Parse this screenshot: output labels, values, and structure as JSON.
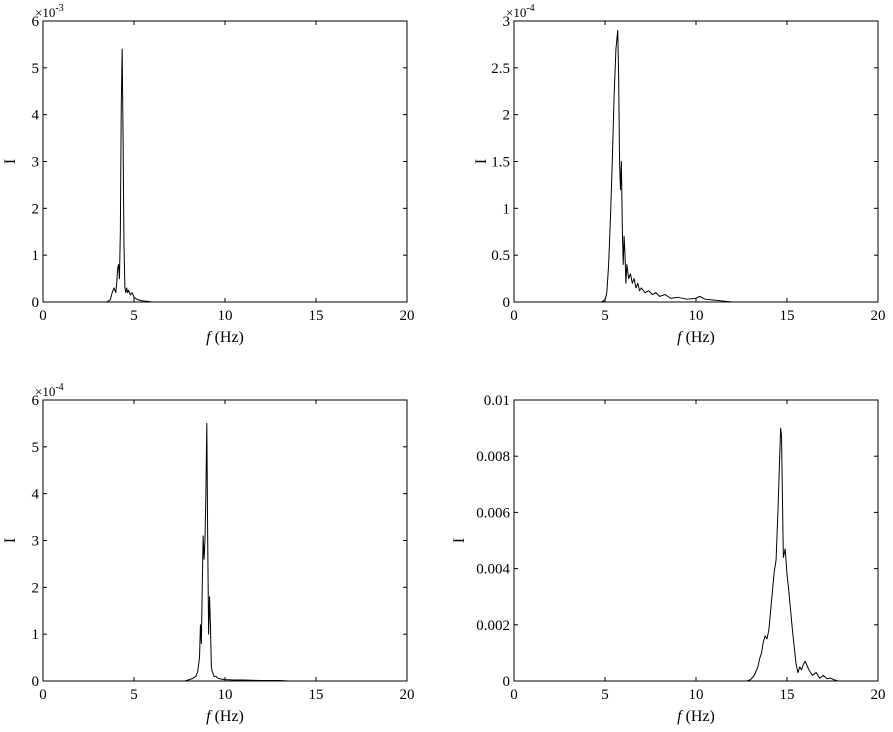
{
  "chart_data": [
    {
      "type": "line",
      "xlabel_italic": "f",
      "xlabel_rest": " (Hz)",
      "ylabel": "I",
      "xlim": [
        0,
        20
      ],
      "ylim": [
        0,
        0.006
      ],
      "tick_scale": 0.001,
      "exponent_base": "×10",
      "exponent_power": "-3",
      "xticks": [
        0,
        5,
        10,
        15,
        20
      ],
      "yticks": [
        0,
        0.001,
        0.002,
        0.003,
        0.004,
        0.005,
        0.006
      ],
      "ytick_labels": [
        "0",
        "1",
        "2",
        "3",
        "4",
        "5",
        "6"
      ],
      "grid": false,
      "series": [
        {
          "x": [
            3.5,
            3.7,
            3.8,
            3.9,
            4.0,
            4.05,
            4.1,
            4.15,
            4.2,
            4.25,
            4.3,
            4.35,
            4.4,
            4.45,
            4.5,
            4.55,
            4.6,
            4.65,
            4.7,
            4.8,
            4.9,
            5.0,
            5.2,
            5.4,
            5.6,
            5.8,
            6.0
          ],
          "y": [
            0,
            5e-05,
            0.0002,
            0.0003,
            0.0002,
            0.0004,
            0.0007,
            0.0008,
            0.0005,
            0.0015,
            0.0042,
            0.0054,
            0.0035,
            0.0012,
            0.0003,
            0.0002,
            0.0003,
            0.0002,
            0.00025,
            0.00015,
            0.0002,
            0.0001,
            5e-05,
            3e-05,
            2e-05,
            1e-05,
            0
          ]
        }
      ]
    },
    {
      "type": "line",
      "xlabel_italic": "f",
      "xlabel_rest": " (Hz)",
      "ylabel": "I",
      "xlim": [
        0,
        20
      ],
      "ylim": [
        0,
        0.0003
      ],
      "tick_scale": 0.0001,
      "exponent_base": "×10",
      "exponent_power": "-4",
      "xticks": [
        0,
        5,
        10,
        15,
        20
      ],
      "yticks": [
        0,
        5e-05,
        0.0001,
        0.00015,
        0.0002,
        0.00025,
        0.0003
      ],
      "ytick_labels": [
        "0",
        "0.5",
        "1",
        "1.5",
        "2",
        "2.5",
        "3"
      ],
      "grid": false,
      "series": [
        {
          "x": [
            4.8,
            5.0,
            5.1,
            5.2,
            5.3,
            5.4,
            5.5,
            5.6,
            5.7,
            5.75,
            5.8,
            5.85,
            5.9,
            5.95,
            6.0,
            6.05,
            6.1,
            6.15,
            6.2,
            6.3,
            6.4,
            6.5,
            6.6,
            6.7,
            6.8,
            6.9,
            7.0,
            7.2,
            7.4,
            7.6,
            7.8,
            8.0,
            8.3,
            8.6,
            9.0,
            9.5,
            10.0,
            10.2,
            10.5,
            11.0,
            11.5,
            12.0
          ],
          "y": [
            0,
            2e-06,
            1e-05,
            4e-05,
            9e-05,
            0.00015,
            0.00022,
            0.00027,
            0.00029,
            0.00024,
            0.00015,
            0.00012,
            0.00015,
            8e-05,
            4e-05,
            7e-05,
            5e-05,
            2e-05,
            4e-05,
            2.5e-05,
            3e-05,
            2e-05,
            2.5e-05,
            1.5e-05,
            2e-05,
            1.2e-05,
            1.5e-05,
            1e-05,
            1.2e-05,
            8e-06,
            1e-05,
            6e-06,
            8e-06,
            4e-06,
            5e-06,
            3e-06,
            4e-06,
            6e-06,
            3e-06,
            2e-06,
            1e-06,
            0
          ]
        }
      ]
    },
    {
      "type": "line",
      "xlabel_italic": "f",
      "xlabel_rest": " (Hz)",
      "ylabel": "I",
      "xlim": [
        0,
        20
      ],
      "ylim": [
        0,
        0.0006
      ],
      "tick_scale": 0.0001,
      "exponent_base": "×10",
      "exponent_power": "-4",
      "xticks": [
        0,
        5,
        10,
        15,
        20
      ],
      "yticks": [
        0,
        0.0001,
        0.0002,
        0.0003,
        0.0004,
        0.0005,
        0.0006
      ],
      "ytick_labels": [
        "0",
        "1",
        "2",
        "3",
        "4",
        "5",
        "6"
      ],
      "grid": false,
      "series": [
        {
          "x": [
            7.8,
            8.2,
            8.4,
            8.5,
            8.6,
            8.65,
            8.7,
            8.75,
            8.8,
            8.85,
            8.9,
            8.95,
            9.0,
            9.05,
            9.1,
            9.15,
            9.2,
            9.25,
            9.3,
            9.35,
            9.4,
            9.5,
            9.6,
            9.8,
            10.0,
            10.5,
            11.0,
            12.0,
            13.0,
            13.5
          ],
          "y": [
            0,
            5e-06,
            1e-05,
            2e-05,
            5e-05,
            0.00012,
            8e-05,
            0.0002,
            0.00031,
            0.00026,
            0.0003,
            0.0004,
            0.00055,
            0.0003,
            0.0001,
            0.00018,
            0.00012,
            3e-05,
            2e-05,
            1.5e-05,
            1e-05,
            1e-05,
            6e-06,
            4e-06,
            3e-06,
            2e-06,
            2e-06,
            1e-06,
            1e-06,
            0
          ]
        }
      ]
    },
    {
      "type": "line",
      "xlabel_italic": "f",
      "xlabel_rest": " (Hz)",
      "ylabel": "I",
      "xlim": [
        0,
        20
      ],
      "ylim": [
        0,
        0.01
      ],
      "tick_scale": 1,
      "exponent_base": "",
      "exponent_power": "",
      "xticks": [
        0,
        5,
        10,
        15,
        20
      ],
      "yticks": [
        0,
        0.002,
        0.004,
        0.006,
        0.008,
        0.01
      ],
      "ytick_labels": [
        "0",
        "0.002",
        "0.004",
        "0.006",
        "0.008",
        "0.01"
      ],
      "grid": false,
      "series": [
        {
          "x": [
            12.8,
            13.0,
            13.2,
            13.4,
            13.5,
            13.6,
            13.7,
            13.8,
            13.9,
            14.0,
            14.1,
            14.2,
            14.3,
            14.4,
            14.5,
            14.6,
            14.65,
            14.7,
            14.75,
            14.8,
            14.9,
            15.0,
            15.1,
            15.2,
            15.3,
            15.4,
            15.5,
            15.6,
            15.7,
            15.8,
            15.9,
            16.0,
            16.2,
            16.4,
            16.6,
            16.8,
            17.0,
            17.2,
            17.4,
            17.6,
            17.8
          ],
          "y": [
            0,
            5e-05,
            0.0002,
            0.0005,
            0.0008,
            0.001,
            0.0014,
            0.0016,
            0.0015,
            0.0018,
            0.0025,
            0.0032,
            0.0039,
            0.0043,
            0.006,
            0.008,
            0.009,
            0.0087,
            0.0065,
            0.0044,
            0.0047,
            0.0038,
            0.0032,
            0.0025,
            0.0018,
            0.0012,
            0.0006,
            0.0003,
            0.0005,
            0.0004,
            0.0006,
            0.0007,
            0.0004,
            0.0002,
            0.0003,
            0.0001,
            0.0002,
            8e-05,
            0.0001,
            4e-05,
            0
          ]
        }
      ]
    }
  ]
}
